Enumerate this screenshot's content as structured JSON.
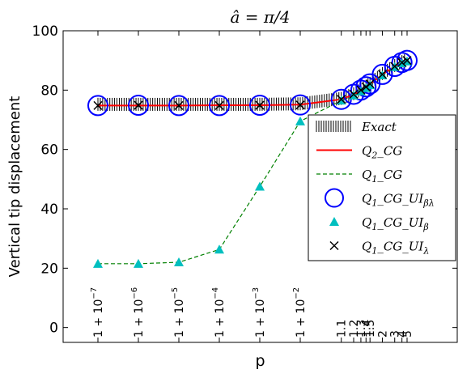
{
  "chart_data": {
    "type": "line",
    "title": "â = π/4",
    "xlabel": "p",
    "ylabel": "Vertical tip displacement",
    "ylim": [
      -5,
      100
    ],
    "yticks": [
      0,
      20,
      40,
      60,
      80,
      100
    ],
    "grid": false,
    "legend_position": "right",
    "x_scale": "log(p - 1)",
    "x": [
      1.0000001,
      1.000001,
      1.00001,
      1.0001,
      1.001,
      1.01,
      1.1,
      1.2,
      1.3,
      1.4,
      1.5,
      2,
      3,
      4,
      5
    ],
    "x_tick_labels": [
      "1+10^-7",
      "1+10^-6",
      "1+10^-5",
      "1+10^-4",
      "1+10^-3",
      "1+10^-2",
      "1.1",
      "1.2",
      "1.3",
      "1.4",
      "1.5",
      "2",
      "3",
      "4",
      "5"
    ],
    "series": [
      {
        "name": "Exact",
        "marker": "vertical-hatch",
        "color": "#000000",
        "values": [
          75.2,
          75.2,
          75.2,
          75.2,
          75.2,
          75.4,
          77.2,
          78.8,
          80.2,
          81.3,
          82.3,
          85.6,
          88.3,
          89.6,
          90.2
        ]
      },
      {
        "name": "Q_2_CG",
        "marker": "line-solid",
        "color": "#ff0000",
        "values": [
          74.8,
          74.8,
          74.8,
          74.9,
          74.9,
          75.1,
          76.9,
          78.5,
          79.9,
          81.0,
          82.0,
          85.3,
          88.0,
          89.3,
          89.9
        ]
      },
      {
        "name": "Q_1_CG",
        "marker": "line-dashed",
        "color": "#008000",
        "values": [
          21.5,
          21.5,
          22.0,
          26.3,
          47.5,
          69.5,
          76.5,
          78.2,
          79.6,
          80.7,
          81.7,
          85.0,
          87.8,
          89.1,
          89.7
        ]
      },
      {
        "name": "Q_1_CG_UI_βλ",
        "marker": "circle",
        "color": "#0000ff",
        "values": [
          74.8,
          74.9,
          74.8,
          74.8,
          74.9,
          75.0,
          76.9,
          78.6,
          80.0,
          81.1,
          82.1,
          85.3,
          88.0,
          89.3,
          90.0
        ]
      },
      {
        "name": "Q_1_CG_UI_β",
        "marker": "triangle",
        "color": "#00bfbf",
        "values": [
          21.5,
          21.5,
          22.0,
          26.3,
          47.5,
          69.5,
          76.5,
          78.2,
          79.6,
          80.7,
          81.7,
          85.0,
          87.8,
          89.1,
          89.7
        ]
      },
      {
        "name": "Q_1_CG_UI_λ",
        "marker": "x",
        "color": "#000000",
        "values": [
          74.8,
          74.9,
          74.8,
          74.8,
          74.9,
          75.0,
          76.9,
          78.6,
          80.0,
          81.1,
          82.1,
          85.3,
          88.0,
          89.3,
          90.0
        ]
      }
    ],
    "legend": [
      {
        "key": "exact",
        "base": "Exact",
        "sub": "",
        "sub_greek": ""
      },
      {
        "key": "q2cg",
        "base": "Q",
        "sub": "2",
        "rest": "_CG",
        "sub_greek": ""
      },
      {
        "key": "q1cg",
        "base": "Q",
        "sub": "1",
        "rest": "_CG",
        "sub_greek": ""
      },
      {
        "key": "q1bl",
        "base": "Q",
        "sub": "1",
        "rest": "_CG_UI",
        "sub_greek": "βλ"
      },
      {
        "key": "q1b",
        "base": "Q",
        "sub": "1",
        "rest": "_CG_UI",
        "sub_greek": "β"
      },
      {
        "key": "q1l",
        "base": "Q",
        "sub": "1",
        "rest": "_CG_UI",
        "sub_greek": "λ"
      }
    ]
  }
}
